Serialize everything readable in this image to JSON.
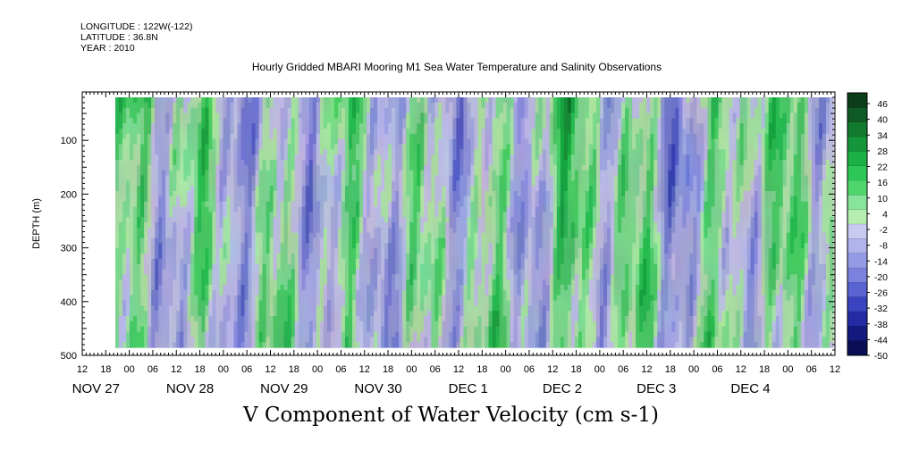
{
  "header": {
    "longitude": "LONGITUDE : 122W(-122)",
    "latitude": "LATITUDE : 36.8N",
    "year": "YEAR : 2010"
  },
  "chart_data": {
    "type": "heatmap",
    "title": "Hourly Gridded MBARI Mooring M1 Sea Water Temperature and Salinity Observations",
    "variable_label": "V Component of Water Velocity (cm s-1)",
    "ylabel": "DEPTH (m)",
    "ylim": [
      500,
      10
    ],
    "yticks": [
      "100",
      "200",
      "300",
      "400",
      "500"
    ],
    "hour_ticks": [
      "12",
      "18",
      "00",
      "06",
      "12",
      "18",
      "00",
      "06",
      "12",
      "18",
      "00",
      "06",
      "12",
      "18",
      "00",
      "06",
      "12",
      "18",
      "00",
      "06",
      "12",
      "18",
      "00",
      "06",
      "12",
      "18",
      "00",
      "06",
      "12",
      "18",
      "00",
      "06",
      "12"
    ],
    "day_labels": [
      "NOV 27",
      "NOV 28",
      "NOV 29",
      "NOV 30",
      "DEC  1",
      "DEC  2",
      "DEC  3",
      "DEC  4"
    ],
    "colorbar": {
      "labels": [
        "46",
        "40",
        "34",
        "28",
        "22",
        "16",
        "10",
        "4",
        "-2",
        "-8",
        "-14",
        "-20",
        "-26",
        "-32",
        "-38",
        "-44",
        "-50"
      ],
      "colors": [
        "#0b3d1a",
        "#0f5a24",
        "#127a2e",
        "#16963a",
        "#1cb046",
        "#2cc757",
        "#4fd76d",
        "#86e59a",
        "#b6eeb0",
        "#c9c9f2",
        "#b0b3ec",
        "#969be6",
        "#7b82de",
        "#5a63d2",
        "#3b44c0",
        "#222ba4",
        "#121a7d",
        "#0a0f55"
      ],
      "scale_range": [
        -50,
        46
      ]
    },
    "data_extent_hours": [
      24,
      276
    ],
    "data_extent_depth": [
      20,
      485
    ]
  }
}
